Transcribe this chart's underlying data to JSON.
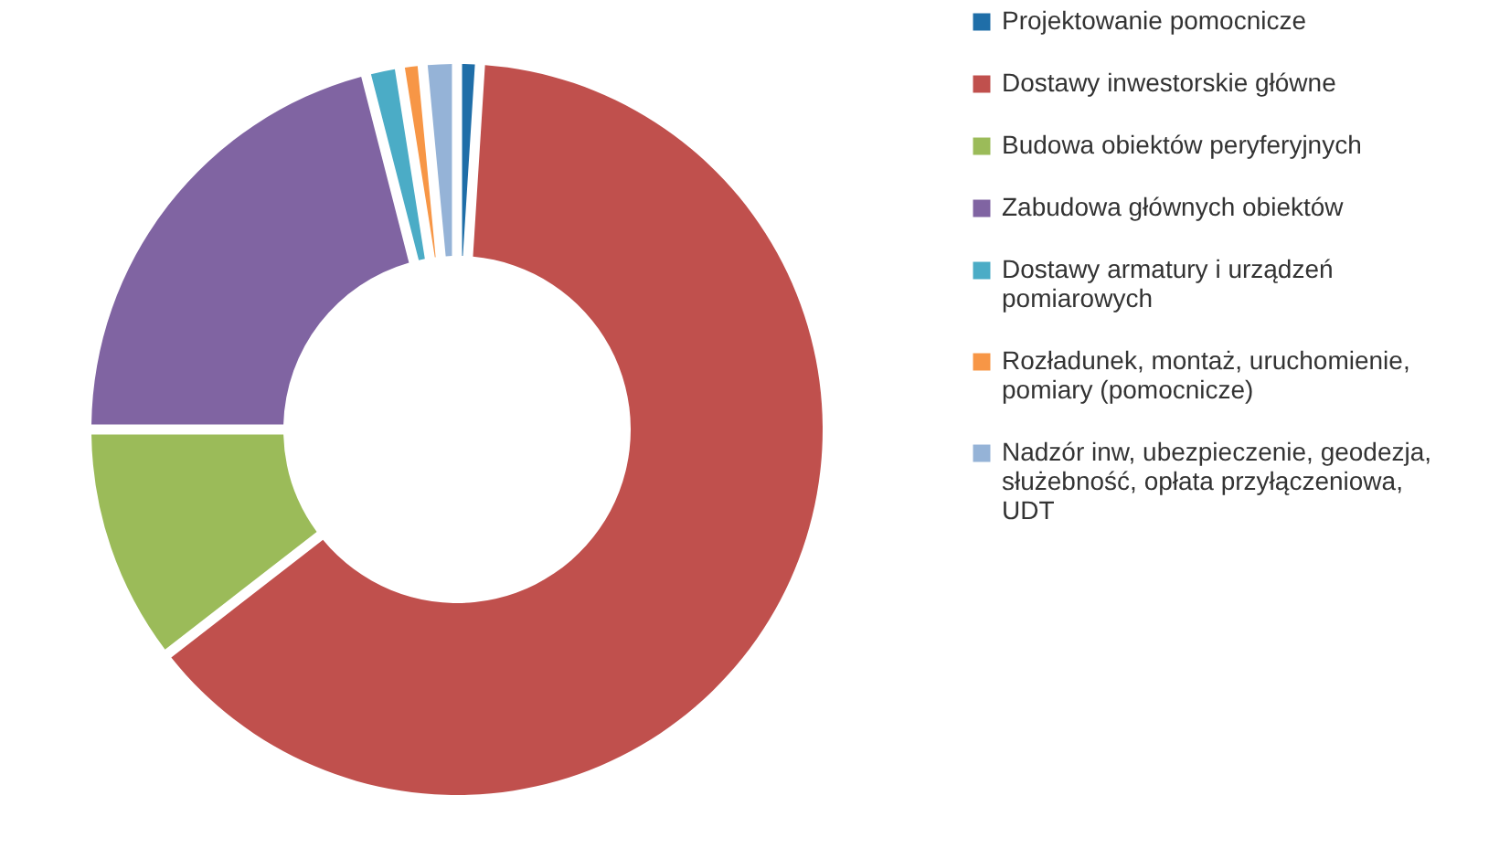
{
  "chart_data": {
    "type": "donut",
    "categories": [
      "Projektowanie pomocnicze",
      "Dostawy inwestorskie główne",
      "Budowa obiektów peryferyjnych",
      "Zabudowa głównych obiektów",
      "Dostawy armatury i urządzeń pomiarowych",
      "Rozładunek, montaż, uruchomienie, pomiary (pomocnicze)",
      "Nadzór inw, ubezpieczenie, geodezja, służebność, opłata przyłączeniowa, UDT"
    ],
    "values": [
      1,
      63.5,
      10.5,
      21,
      1.5,
      1,
      1.5
    ],
    "colors": [
      "#1f6ea8",
      "#c0504d",
      "#9bbb59",
      "#8064a2",
      "#4bacc6",
      "#f79646",
      "#95b3d7"
    ],
    "legend": "right"
  }
}
